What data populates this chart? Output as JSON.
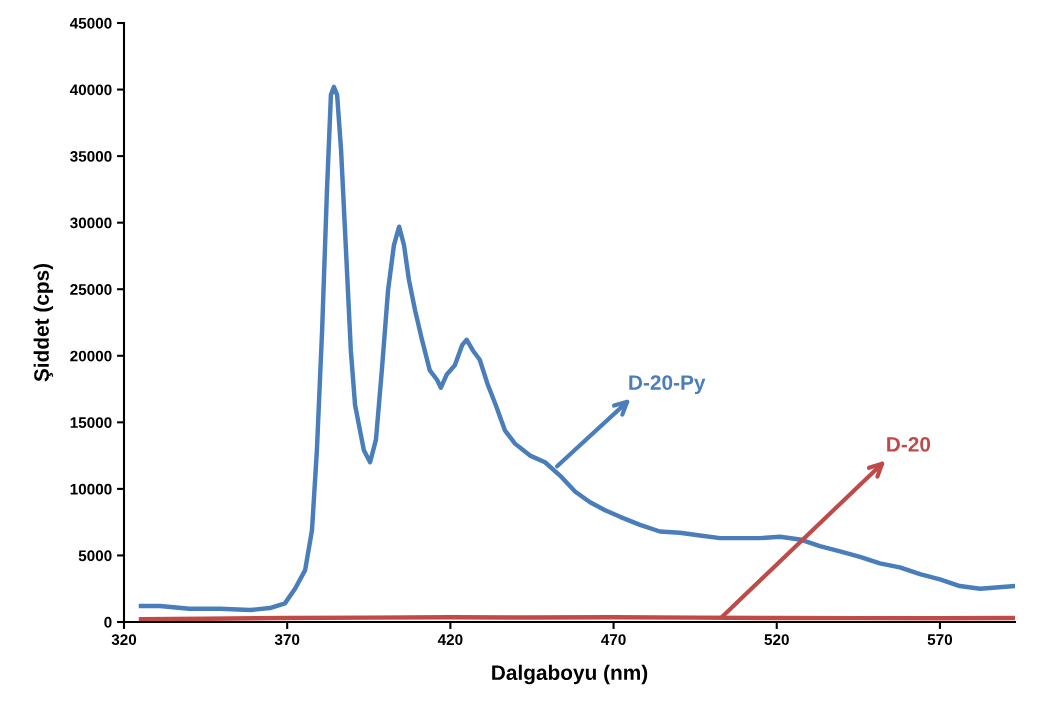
{
  "chart_data": {
    "type": "line",
    "xlabel": "Dalgaboyu (nm)",
    "ylabel": "Şiddet (cps)",
    "xlim": [
      320,
      593
    ],
    "xticks": [
      320,
      370,
      420,
      470,
      520,
      570
    ],
    "ylim": [
      0,
      45000
    ],
    "yticks": [
      0,
      5000,
      10000,
      15000,
      20000,
      25000,
      30000,
      35000,
      40000,
      45000
    ],
    "grid": false,
    "legend": false,
    "marker": "none",
    "line_style": "solid",
    "series": [
      {
        "color": "#4a7ebb",
        "x": [
          325.2,
          331,
          340,
          349.4,
          358.6,
          364.7,
          369.3,
          372.4,
          375.5,
          377.6,
          379.1,
          380.7,
          382.2,
          383.4,
          384.3,
          385.3,
          386.5,
          388,
          389.5,
          390.8,
          392.3,
          393.5,
          395.4,
          397.2,
          399,
          400.9,
          402.7,
          404.3,
          405.8,
          407.3,
          409.2,
          411.3,
          413.7,
          415.9,
          417.1,
          418.9,
          421.4,
          423.6,
          425,
          426.9,
          429,
          431.5,
          433.9,
          436.7,
          439.8,
          444.4,
          449,
          453.6,
          458.2,
          462.8,
          467.4,
          472,
          478.1,
          484.2,
          490.3,
          496.5,
          502.6,
          508.7,
          514.8,
          521,
          527.1,
          533.2,
          539.4,
          545.5,
          551.6,
          557.7,
          563.9,
          570,
          576.1,
          582.3,
          593
        ],
        "values": [
          1200,
          1200,
          1000,
          1000,
          900,
          1050,
          1400,
          2500,
          3900,
          6900,
          12900,
          21900,
          32500,
          39600,
          40200,
          39600,
          35500,
          28000,
          20400,
          16300,
          14400,
          12900,
          12000,
          13700,
          18900,
          24900,
          28300,
          29700,
          28300,
          25700,
          23400,
          21200,
          18900,
          18200,
          17600,
          18600,
          19300,
          20800,
          21200,
          20400,
          19700,
          17800,
          16300,
          14400,
          13400,
          12500,
          12000,
          11000,
          9800,
          9000,
          8400,
          7900,
          7300,
          6800,
          6700,
          6500,
          6300,
          6300,
          6300,
          6400,
          6200,
          5700,
          5300,
          4900,
          4400,
          4100,
          3600,
          3200,
          2700,
          2500,
          2700
        ]
      },
      {
        "color": "#be4b48",
        "x": [
          325.2,
          345,
          370,
          395,
          420,
          445,
          470,
          495,
          520,
          545,
          570,
          593
        ],
        "values": [
          200,
          250,
          300,
          330,
          350,
          340,
          350,
          330,
          300,
          290,
          280,
          300
        ]
      }
    ],
    "annotations": [
      {
        "text": "D-20-Py",
        "x": 452.7,
        "y": 11700
      },
      {
        "text": "D-20",
        "x": 503.2,
        "y": 380
      }
    ]
  }
}
